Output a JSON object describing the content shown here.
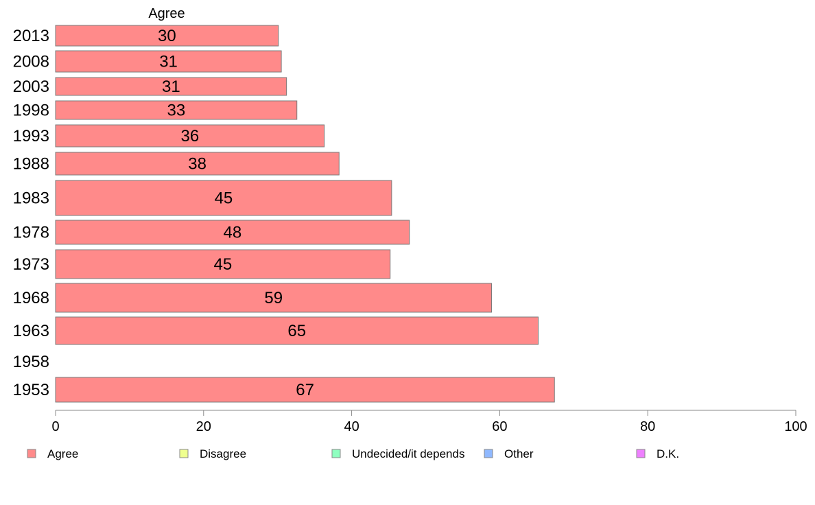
{
  "chart_data": {
    "type": "bar",
    "orientation": "horizontal",
    "column_title": "Agree",
    "categories": [
      "2013",
      "2008",
      "2003",
      "1998",
      "1993",
      "1988",
      "1983",
      "1978",
      "1973",
      "1968",
      "1963",
      "1958",
      "1953"
    ],
    "series": [
      {
        "name": "Agree",
        "color": "#ff8a8a",
        "values": [
          30.1,
          30.5,
          31.2,
          32.6,
          36.3,
          38.3,
          45.4,
          47.8,
          45.2,
          58.9,
          65.2,
          null,
          67.4
        ],
        "labels": [
          "30",
          "31",
          "31",
          "33",
          "36",
          "38",
          "45",
          "48",
          "45",
          "59",
          "65",
          "",
          "67"
        ]
      }
    ],
    "xlim": [
      0,
      100
    ],
    "xticks": [
      0,
      20,
      40,
      60,
      80,
      100
    ],
    "grid": false,
    "legend": {
      "placement": "bottom",
      "items": [
        {
          "label": "Agree",
          "color": "#ff8a8a"
        },
        {
          "label": "Disagree",
          "color": "#efff8f"
        },
        {
          "label": "Undecided/it depends",
          "color": "#8fffc0"
        },
        {
          "label": "Other",
          "color": "#8fb8ff"
        },
        {
          "label": "D.K.",
          "color": "#ee80ff"
        }
      ]
    }
  }
}
